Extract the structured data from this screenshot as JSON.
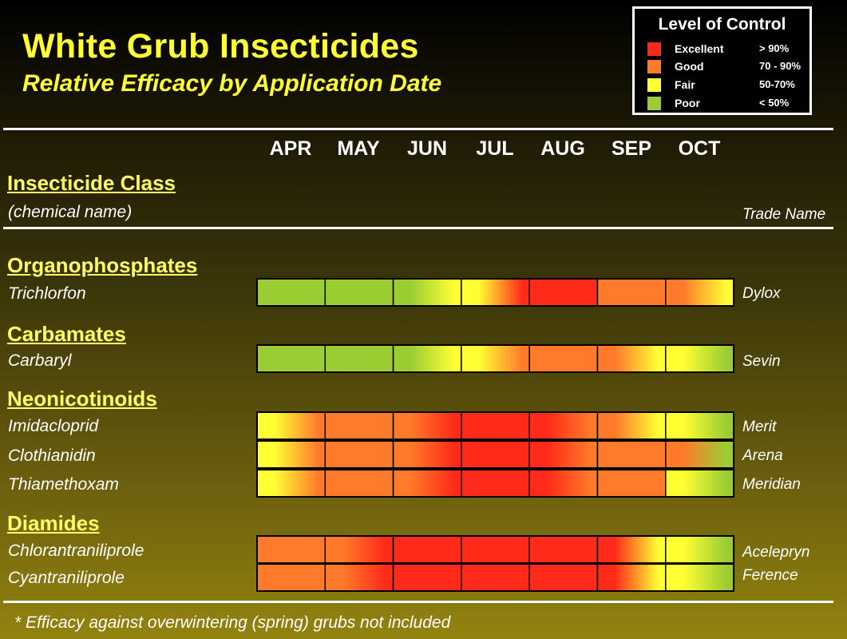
{
  "title": "White Grub Insecticides",
  "subtitle": "Relative Efficacy by Application Date",
  "legend": {
    "title": "Level of Control",
    "items": [
      {
        "name": "Excellent",
        "range": "> 90%",
        "color": "#ff2a1a"
      },
      {
        "name": "Good",
        "range": "70 - 90%",
        "color": "#ff7a2a"
      },
      {
        "name": "Fair",
        "range": "50-70%",
        "color": "#ffff33"
      },
      {
        "name": "Poor",
        "range": "< 50%",
        "color": "#9acd32"
      }
    ]
  },
  "headers": {
    "class_label": "Insecticide Class",
    "chemical_label": "(chemical name)",
    "trade_label": "Trade Name"
  },
  "footnote": "* Efficacy against overwintering (spring) grubs not included",
  "chart_data": {
    "type": "heatmap",
    "months": [
      "APR",
      "MAY",
      "JUN",
      "JUL",
      "AUG",
      "SEP",
      "OCT"
    ],
    "level_colors": {
      "Excellent": "#ff2a1a",
      "Good": "#ff7a2a",
      "Fair": "#ffff33",
      "Poor": "#9acd32"
    },
    "groups": [
      {
        "class": "Organophosphates",
        "rows": [
          {
            "chemical": "Trichlorfon",
            "trade": "Dylox",
            "cells": [
              [
                "Poor",
                "Poor"
              ],
              [
                "Poor",
                "Poor"
              ],
              [
                "Poor",
                "Fair"
              ],
              [
                "Fair",
                "Excellent"
              ],
              [
                "Excellent",
                "Excellent"
              ],
              [
                "Good",
                "Good"
              ],
              [
                "Good",
                "Fair"
              ]
            ]
          }
        ]
      },
      {
        "class": "Carbamates",
        "rows": [
          {
            "chemical": "Carbaryl",
            "trade": "Sevin",
            "cells": [
              [
                "Poor",
                "Poor"
              ],
              [
                "Poor",
                "Poor"
              ],
              [
                "Poor",
                "Fair"
              ],
              [
                "Fair",
                "Good"
              ],
              [
                "Good",
                "Good"
              ],
              [
                "Good",
                "Fair"
              ],
              [
                "Fair",
                "Poor"
              ]
            ]
          }
        ]
      },
      {
        "class": "Neonicotinoids",
        "rows": [
          {
            "chemical": "Imidacloprid",
            "trade": "Merit",
            "cells": [
              [
                "Fair",
                "Good"
              ],
              [
                "Good",
                "Good"
              ],
              [
                "Good",
                "Excellent"
              ],
              [
                "Excellent",
                "Excellent"
              ],
              [
                "Excellent",
                "Good"
              ],
              [
                "Good",
                "Fair"
              ],
              [
                "Fair",
                "Poor"
              ]
            ]
          },
          {
            "chemical": "Clothianidin",
            "trade": "Arena",
            "cells": [
              [
                "Fair",
                "Good"
              ],
              [
                "Good",
                "Good"
              ],
              [
                "Good",
                "Excellent"
              ],
              [
                "Excellent",
                "Excellent"
              ],
              [
                "Excellent",
                "Good"
              ],
              [
                "Good",
                "Good"
              ],
              [
                "Good",
                "Poor"
              ]
            ]
          },
          {
            "chemical": "Thiamethoxam",
            "trade": "Meridian",
            "cells": [
              [
                "Fair",
                "Good"
              ],
              [
                "Good",
                "Good"
              ],
              [
                "Good",
                "Excellent"
              ],
              [
                "Excellent",
                "Excellent"
              ],
              [
                "Excellent",
                "Good"
              ],
              [
                "Good",
                "Good"
              ],
              [
                "Fair",
                "Poor"
              ]
            ]
          }
        ]
      },
      {
        "class": "Diamides",
        "rows": [
          {
            "chemical": "Chlorantraniliprole",
            "trade": "Acelepryn",
            "cells": [
              [
                "Good",
                "Good"
              ],
              [
                "Good",
                "Excellent"
              ],
              [
                "Excellent",
                "Excellent"
              ],
              [
                "Excellent",
                "Excellent"
              ],
              [
                "Excellent",
                "Excellent"
              ],
              [
                "Excellent",
                "Fair"
              ],
              [
                "Fair",
                "Poor"
              ]
            ]
          },
          {
            "chemical": "Cyantraniliprole",
            "trade": "Ference",
            "cells": [
              [
                "Good",
                "Good"
              ],
              [
                "Good",
                "Excellent"
              ],
              [
                "Excellent",
                "Excellent"
              ],
              [
                "Excellent",
                "Excellent"
              ],
              [
                "Excellent",
                "Excellent"
              ],
              [
                "Excellent",
                "Fair"
              ],
              [
                "Fair",
                "Poor"
              ]
            ]
          }
        ]
      }
    ]
  }
}
